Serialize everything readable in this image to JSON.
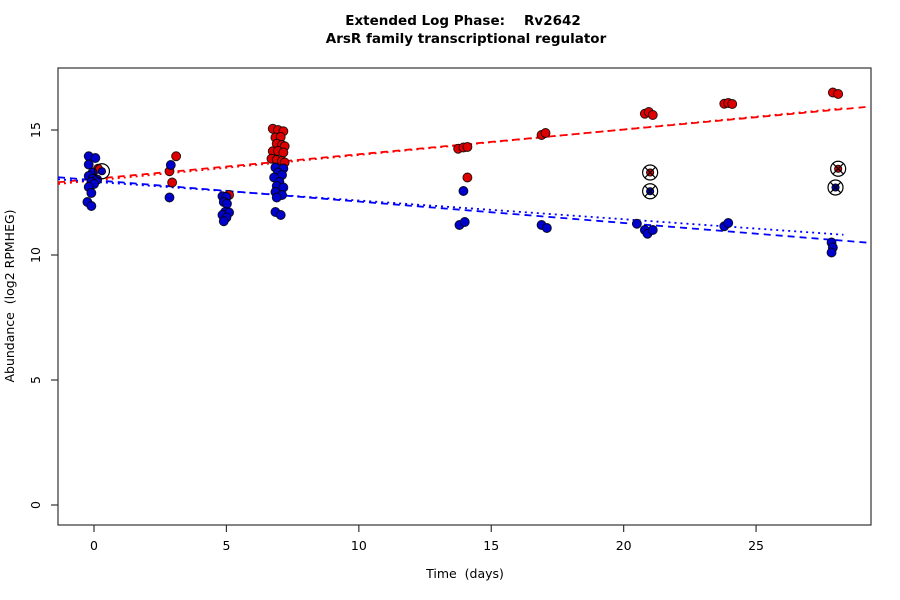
{
  "figure": {
    "title_prefix": "Extended Log Phase:",
    "title_gene": "Rv2642",
    "title_line2": "ArsR family transcriptional regulator",
    "x_axis_label": "Time  (days)",
    "y_axis_label": "Abundance  (log2 RPMHEG)"
  },
  "colors": {
    "red_point": "#dd0000",
    "blue_point": "#0000cc",
    "red_line": "#ff0000",
    "blue_line": "#0000ff",
    "axis": "#333333",
    "outlier_ring": "#000000"
  },
  "chart_data": {
    "type": "scatter",
    "title": "Extended Log Phase: Rv2642 - ArsR family transcriptional regulator",
    "xlabel": "Time (days)",
    "ylabel": "Abundance (log2 RPMHEG)",
    "xlim": [
      -1.36,
      29.34
    ],
    "ylim": [
      -0.8,
      17.48
    ],
    "x_ticks": [
      0,
      5,
      10,
      15,
      20,
      25
    ],
    "y_ticks": [
      0,
      5,
      10,
      15
    ],
    "grid": false,
    "legend": "none",
    "series": [
      {
        "name": "red-upregulated",
        "color": "#dd0000",
        "points": [
          [
            0.15,
            13.45
          ],
          [
            0.1,
            13.0
          ],
          [
            3.1,
            13.95
          ],
          [
            2.85,
            13.35
          ],
          [
            2.95,
            12.9
          ],
          [
            5.1,
            12.4
          ],
          [
            6.75,
            15.05
          ],
          [
            6.95,
            15.0
          ],
          [
            7.15,
            14.95
          ],
          [
            6.85,
            14.7
          ],
          [
            7.05,
            14.72
          ],
          [
            6.9,
            14.45
          ],
          [
            7.1,
            14.4
          ],
          [
            7.2,
            14.35
          ],
          [
            6.75,
            14.15
          ],
          [
            6.95,
            14.16
          ],
          [
            7.15,
            14.1
          ],
          [
            6.7,
            13.85
          ],
          [
            6.9,
            13.8
          ],
          [
            7.1,
            13.76
          ],
          [
            7.2,
            13.7
          ],
          [
            13.75,
            14.25
          ],
          [
            13.95,
            14.3
          ],
          [
            14.1,
            14.32
          ],
          [
            14.1,
            13.1
          ],
          [
            16.9,
            14.8
          ],
          [
            17.05,
            14.88
          ],
          [
            20.8,
            15.65
          ],
          [
            20.95,
            15.72
          ],
          [
            21.1,
            15.6
          ],
          [
            23.8,
            16.05
          ],
          [
            23.95,
            16.08
          ],
          [
            24.1,
            16.04
          ],
          [
            27.9,
            16.5
          ],
          [
            28.1,
            16.44
          ]
        ]
      },
      {
        "name": "blue-downregulated",
        "color": "#0000cc",
        "points": [
          [
            -0.2,
            13.95
          ],
          [
            0.05,
            13.88
          ],
          [
            -0.2,
            13.62
          ],
          [
            -0.05,
            13.3
          ],
          [
            -0.2,
            13.16
          ],
          [
            -0.05,
            13.05
          ],
          [
            0.12,
            13.02
          ],
          [
            -0.1,
            12.92
          ],
          [
            0.0,
            12.84
          ],
          [
            -0.2,
            12.72
          ],
          [
            -0.1,
            12.48
          ],
          [
            -0.25,
            12.12
          ],
          [
            -0.1,
            11.96
          ],
          [
            2.9,
            13.6
          ],
          [
            2.85,
            12.3
          ],
          [
            4.85,
            12.35
          ],
          [
            5.0,
            12.32
          ],
          [
            4.9,
            12.12
          ],
          [
            5.02,
            12.05
          ],
          [
            4.95,
            11.72
          ],
          [
            5.1,
            11.7
          ],
          [
            4.85,
            11.6
          ],
          [
            5.0,
            11.5
          ],
          [
            4.9,
            11.35
          ],
          [
            6.85,
            13.5
          ],
          [
            7.15,
            13.46
          ],
          [
            6.95,
            13.3
          ],
          [
            7.1,
            13.2
          ],
          [
            6.8,
            13.1
          ],
          [
            7.0,
            12.92
          ],
          [
            6.9,
            12.76
          ],
          [
            7.15,
            12.7
          ],
          [
            6.85,
            12.52
          ],
          [
            7.1,
            12.4
          ],
          [
            6.9,
            12.3
          ],
          [
            6.85,
            11.72
          ],
          [
            7.05,
            11.6
          ],
          [
            13.8,
            11.2
          ],
          [
            14.0,
            11.32
          ],
          [
            13.95,
            12.56
          ],
          [
            16.9,
            11.2
          ],
          [
            17.1,
            11.08
          ],
          [
            20.5,
            11.25
          ],
          [
            20.8,
            11.0
          ],
          [
            20.9,
            10.85
          ],
          [
            21.1,
            11.0
          ],
          [
            23.8,
            11.15
          ],
          [
            23.95,
            11.28
          ],
          [
            27.85,
            10.5
          ],
          [
            27.9,
            10.3
          ],
          [
            27.85,
            10.1
          ]
        ]
      }
    ],
    "flagged_outliers": [
      {
        "x": 0.3,
        "y": 13.35,
        "color": "#0000cc",
        "style": "ring"
      },
      {
        "x": 21.0,
        "y": 13.3,
        "color": "#dd0000",
        "style": "ring-x"
      },
      {
        "x": 21.0,
        "y": 12.55,
        "color": "#0000cc",
        "style": "ring-x"
      },
      {
        "x": 28.1,
        "y": 13.45,
        "color": "#dd0000",
        "style": "ring-x"
      },
      {
        "x": 28.0,
        "y": 12.7,
        "color": "#0000cc",
        "style": "ring-x"
      }
    ],
    "trend_lines": [
      {
        "name": "red-fit-dashed",
        "color": "#ff0000",
        "style": "dashed",
        "x1": -1.36,
        "y1": 12.91,
        "x2": 29.25,
        "y2": 15.93
      },
      {
        "name": "red-fit-dotted",
        "color": "#ff0000",
        "style": "dotted",
        "x1": -1.36,
        "y1": 12.84,
        "x2": 28.3,
        "y2": 15.87
      },
      {
        "name": "blue-fit-dashed",
        "color": "#0000ff",
        "style": "dashed",
        "x1": -1.36,
        "y1": 13.11,
        "x2": 29.25,
        "y2": 10.49
      },
      {
        "name": "blue-fit-dotted",
        "color": "#0000ff",
        "style": "dotted",
        "x1": -1.36,
        "y1": 13.03,
        "x2": 28.3,
        "y2": 10.81
      }
    ]
  }
}
